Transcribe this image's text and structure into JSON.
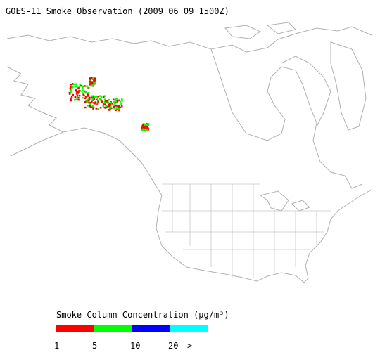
{
  "title": "GOES-11 Smoke Observation (2009 06 09  1500Z)",
  "legend": {
    "title": "Smoke Column Concentration (μg/m³)",
    "colors": [
      "#ff0000",
      "#00ff00",
      "#0000ff",
      "#00ffff"
    ],
    "labels": [
      "1",
      "5",
      "10",
      "20",
      ">"
    ]
  }
}
